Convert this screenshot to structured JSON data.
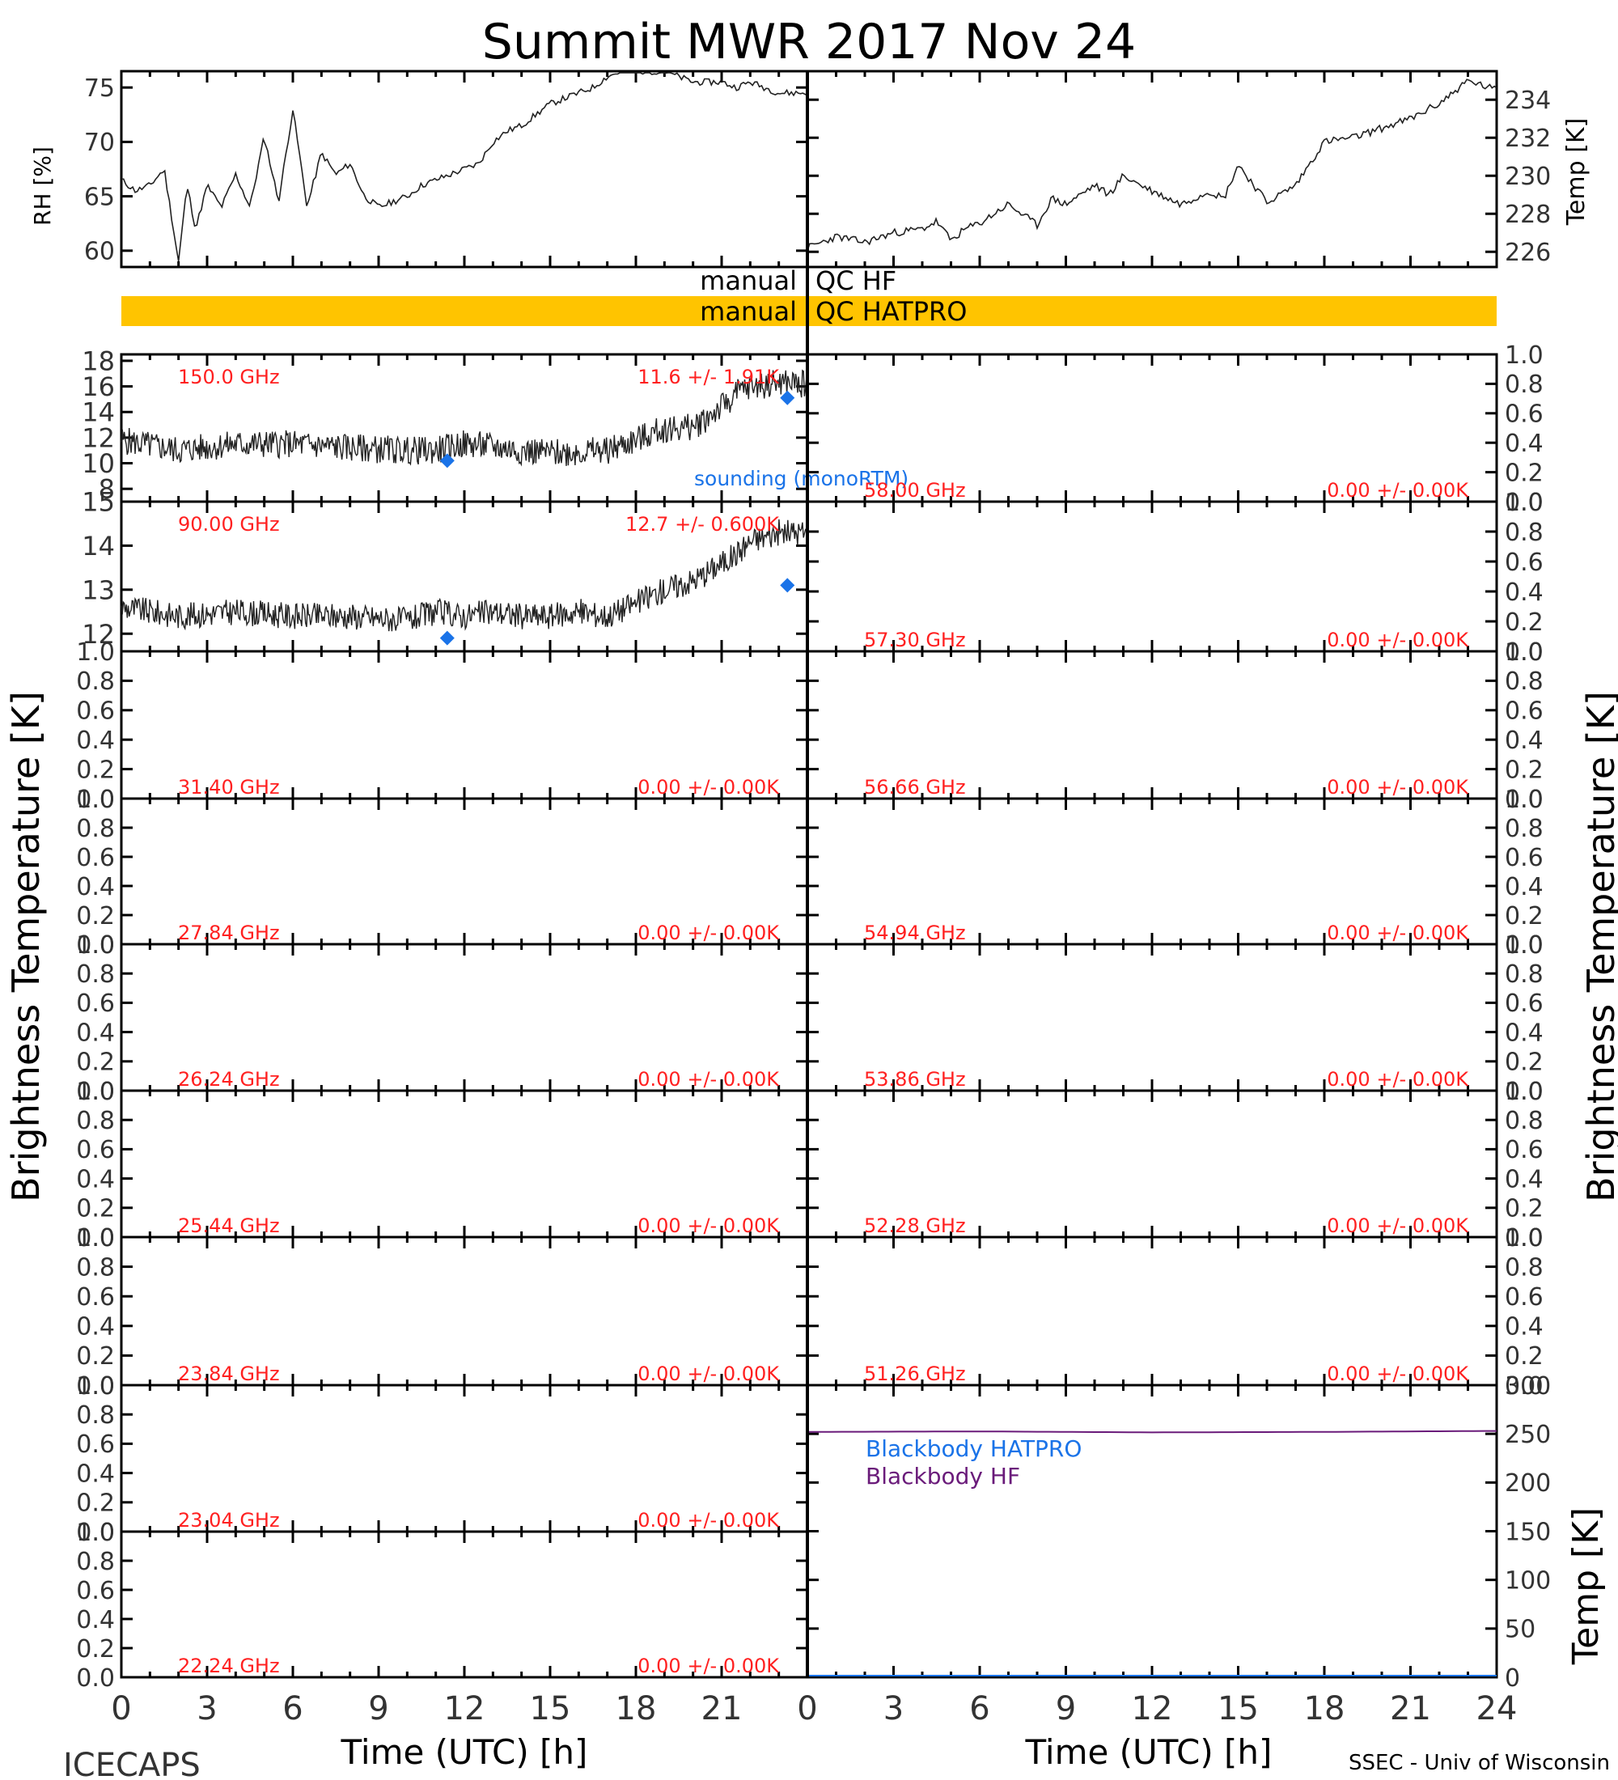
{
  "title": "Summit MWR 2017 Nov 24",
  "footer": {
    "left": "ICECAPS",
    "right": "SSEC - Univ of Wisconsin"
  },
  "common_ylabel": "Brightness Temperature [K]",
  "colors": {
    "axis": "#000000",
    "trace": "#222222",
    "annotation": "#ff2020",
    "sounding": "#1a73e8",
    "qc_bar": "#ffc400",
    "bb_hatpro": "#1a73e8",
    "bb_hf": "#6a1b7a"
  },
  "qc": {
    "hf_label": "manual",
    "hf_value": "QC HF",
    "hatpro_label": "manual",
    "hatpro_value": "QC HATPRO"
  },
  "chart_data": [
    {
      "id": "rh",
      "type": "line",
      "ylabel": "RH [%]",
      "xlim": [
        0,
        24
      ],
      "ylim": [
        58.5,
        76.5
      ],
      "yticks": [
        60,
        65,
        70,
        75
      ],
      "x": [
        0,
        0.5,
        1,
        1.5,
        2,
        2.3,
        2.6,
        3,
        3.5,
        4,
        4.5,
        5,
        5.5,
        6,
        6.5,
        7,
        7.5,
        8,
        8.5,
        9,
        9.5,
        10,
        10.5,
        11,
        11.5,
        12,
        12.5,
        13,
        13.5,
        14,
        14.5,
        15,
        15.5,
        16,
        16.5,
        17,
        17.5,
        18,
        18.5,
        19,
        19.5,
        20,
        20.5,
        21,
        21.5,
        22,
        22.5,
        23,
        23.5,
        24
      ],
      "y": [
        66.5,
        65.5,
        66,
        67.5,
        59,
        66,
        62,
        66,
        64,
        67,
        64,
        70.5,
        64.5,
        73,
        64,
        69,
        67,
        68,
        65,
        64,
        64.5,
        65,
        66,
        66.5,
        67,
        67.5,
        68,
        70,
        71,
        71.5,
        72.5,
        73.5,
        74,
        74.5,
        75,
        76,
        76.5,
        76.5,
        76.5,
        76.5,
        76,
        75.5,
        75.5,
        75.5,
        75,
        75.5,
        75,
        74.5,
        74.5,
        74.5
      ]
    },
    {
      "id": "temp",
      "type": "line",
      "ylabel": "Temp [K]",
      "xlim": [
        0,
        24
      ],
      "ylim": [
        225.2,
        235.5
      ],
      "yticks": [
        226,
        228,
        230,
        232,
        234
      ],
      "x": [
        0,
        1,
        2,
        3,
        4,
        4.5,
        5,
        5.5,
        6,
        7,
        8,
        8.5,
        9,
        10,
        10.5,
        11,
        12,
        13,
        14,
        14.5,
        15,
        16,
        17,
        18,
        19,
        20,
        21,
        22,
        23,
        24
      ],
      "y": [
        226.2,
        226.8,
        226.5,
        227,
        227.2,
        227.6,
        226.6,
        227.2,
        227.5,
        228.5,
        227.4,
        228.8,
        228.5,
        229.5,
        229,
        230,
        229.2,
        228.5,
        229.2,
        228.8,
        230.6,
        228.6,
        229.5,
        231.8,
        232,
        232.5,
        233,
        233.8,
        235,
        234.5
      ]
    },
    {
      "id": "ch150",
      "type": "line",
      "frequency": "150.0 GHz",
      "stat": "11.6 +/-  1.91K",
      "xlim": [
        0,
        24
      ],
      "ylim": [
        7,
        18.5
      ],
      "yticks": [
        8,
        10,
        12,
        14,
        16,
        18
      ],
      "x": [
        0,
        2,
        4,
        6,
        8,
        10,
        11,
        12,
        13,
        14,
        15,
        16,
        17,
        18,
        19,
        20,
        21,
        21.5,
        22,
        23,
        24
      ],
      "y": [
        11.8,
        11,
        11.5,
        11.5,
        11.2,
        11,
        11,
        11.5,
        11.3,
        11,
        10.8,
        10.9,
        11,
        11.8,
        12.7,
        12.8,
        14.4,
        15.4,
        16,
        16.3,
        16.2
      ],
      "sounding": {
        "name": "sounding (monoRTM)",
        "x": [
          11.4,
          23.3
        ],
        "y": [
          10.2,
          15.1
        ]
      }
    },
    {
      "id": "ch90",
      "type": "line",
      "frequency": "90.00 GHz",
      "stat": "12.7 +/-  0.600K",
      "xlim": [
        0,
        24
      ],
      "ylim": [
        11.6,
        15
      ],
      "yticks": [
        12,
        13,
        14,
        15
      ],
      "x": [
        0,
        2,
        4,
        6,
        8,
        10,
        11,
        12,
        13,
        14,
        15,
        16,
        17,
        18,
        19,
        20,
        21,
        21.5,
        22,
        23,
        24
      ],
      "y": [
        12.6,
        12.4,
        12.5,
        12.4,
        12.4,
        12.3,
        12.5,
        12.4,
        12.5,
        12.4,
        12.4,
        12.5,
        12.4,
        12.7,
        13.0,
        13.2,
        13.6,
        13.8,
        14.1,
        14.3,
        14.3
      ],
      "sounding": {
        "x": [
          11.4,
          23.3
        ],
        "y": [
          11.9,
          13.1
        ]
      }
    },
    {
      "id": "ch3140",
      "type": "line",
      "frequency": "31.40 GHz",
      "stat": "0.00 +/-  0.00K",
      "ylim": [
        0,
        1
      ]
    },
    {
      "id": "ch2784",
      "type": "line",
      "frequency": "27.84 GHz",
      "stat": "0.00 +/-  0.00K",
      "ylim": [
        0,
        1
      ]
    },
    {
      "id": "ch2624",
      "type": "line",
      "frequency": "26.24 GHz",
      "stat": "0.00 +/-  0.00K",
      "ylim": [
        0,
        1
      ]
    },
    {
      "id": "ch2544",
      "type": "line",
      "frequency": "25.44 GHz",
      "stat": "0.00 +/-  0.00K",
      "ylim": [
        0,
        1
      ]
    },
    {
      "id": "ch2384",
      "type": "line",
      "frequency": "23.84 GHz",
      "stat": "0.00 +/-  0.00K",
      "ylim": [
        0,
        1
      ]
    },
    {
      "id": "ch2304",
      "type": "line",
      "frequency": "23.04 GHz",
      "stat": "0.00 +/-  0.00K",
      "ylim": [
        0,
        1
      ]
    },
    {
      "id": "ch2224",
      "type": "line",
      "frequency": "22.24 GHz",
      "stat": "0.00 +/-  0.00K",
      "ylim": [
        0,
        1
      ]
    },
    {
      "id": "ch5800",
      "type": "line",
      "frequency": "58.00 GHz",
      "stat": "0.00 +/-  0.00K",
      "ylim": [
        0,
        1
      ]
    },
    {
      "id": "ch5730",
      "type": "line",
      "frequency": "57.30 GHz",
      "stat": "0.00 +/-  0.00K",
      "ylim": [
        0,
        1
      ]
    },
    {
      "id": "ch5666",
      "type": "line",
      "frequency": "56.66 GHz",
      "stat": "0.00 +/-  0.00K",
      "ylim": [
        0,
        1
      ]
    },
    {
      "id": "ch5494",
      "type": "line",
      "frequency": "54.94 GHz",
      "stat": "0.00 +/-  0.00K",
      "ylim": [
        0,
        1
      ]
    },
    {
      "id": "ch5386",
      "type": "line",
      "frequency": "53.86 GHz",
      "stat": "0.00 +/-  0.00K",
      "ylim": [
        0,
        1
      ]
    },
    {
      "id": "ch5228",
      "type": "line",
      "frequency": "52.28 GHz",
      "stat": "0.00 +/-  0.00K",
      "ylim": [
        0,
        1
      ]
    },
    {
      "id": "ch5126",
      "type": "line",
      "frequency": "51.26 GHz",
      "stat": "0.00 +/-  0.00K",
      "ylim": [
        0,
        1
      ]
    },
    {
      "id": "blackbody",
      "type": "line",
      "ylabel": "Temp [K]",
      "xlim": [
        0,
        24
      ],
      "ylim": [
        0,
        300
      ],
      "yticks": [
        0,
        50,
        100,
        150,
        200,
        250,
        300
      ],
      "series": [
        {
          "name": "Blackbody HATPRO",
          "x": [
            0,
            24
          ],
          "y": [
            0,
            0
          ]
        },
        {
          "name": "Blackbody HF",
          "x": [
            0,
            6,
            12,
            18,
            24
          ],
          "y": [
            252,
            252.5,
            251.5,
            252,
            253
          ]
        }
      ]
    }
  ],
  "time_axis": {
    "label": "Time (UTC) [h]",
    "ticks": [
      "0",
      "3",
      "6",
      "9",
      "12",
      "15",
      "18",
      "21",
      "24"
    ],
    "left_ticks": [
      "0",
      "3",
      "6",
      "9",
      "12",
      "15",
      "18",
      "21"
    ]
  },
  "empty_yticks": [
    "0.0",
    "0.2",
    "0.4",
    "0.6",
    "0.8",
    "1.0"
  ]
}
